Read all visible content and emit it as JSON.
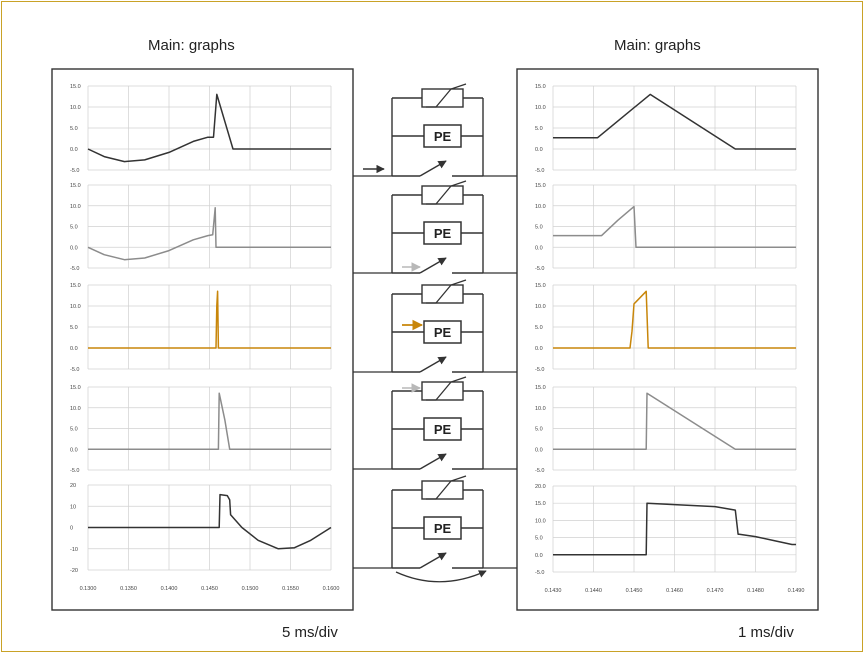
{
  "left_title": "Main: graphs",
  "right_title": "Main: graphs",
  "left_scale": "5 ms/div",
  "right_scale": "1 ms/div",
  "pe_label": "PE",
  "colors": {
    "dark": "#333333",
    "gray": "#8c8c8c",
    "orange": "#c8860a",
    "light": "#b8b8b8",
    "border": "#c9a227"
  },
  "chart_data": [
    {
      "type": "line",
      "panel": "left",
      "x_tick_labels": [],
      "xlim": [
        0.13,
        0.16
      ],
      "ylim": [
        -5,
        15
      ],
      "y_ticks": [
        "15.0",
        "10.0",
        "5.0",
        "0.0",
        "-5.0"
      ],
      "color": "dark",
      "x": [
        0.13,
        0.132,
        0.1345,
        0.137,
        0.14,
        0.143,
        0.1448,
        0.1455,
        0.1459,
        0.1479,
        0.16
      ],
      "y": [
        0,
        -1.8,
        -3,
        -2.6,
        -0.8,
        1.8,
        2.8,
        2.8,
        13,
        0,
        0
      ]
    },
    {
      "type": "line",
      "panel": "left",
      "x_tick_labels": [],
      "xlim": [
        0.13,
        0.16
      ],
      "ylim": [
        -5,
        15
      ],
      "y_ticks": [
        "15.0",
        "10.0",
        "5.0",
        "0.0",
        "-5.0"
      ],
      "color": "gray",
      "x": [
        0.13,
        0.132,
        0.1345,
        0.137,
        0.14,
        0.143,
        0.1448,
        0.1454,
        0.1457,
        0.1458,
        0.16
      ],
      "y": [
        0,
        -1.8,
        -3,
        -2.6,
        -0.8,
        1.8,
        2.8,
        3,
        9.5,
        0,
        0
      ]
    },
    {
      "type": "line",
      "panel": "left",
      "x_tick_labels": [],
      "xlim": [
        0.13,
        0.16
      ],
      "ylim": [
        -5,
        15
      ],
      "y_ticks": [
        "15.0",
        "10.0",
        "5.0",
        "0.0",
        "-5.0"
      ],
      "color": "orange",
      "x": [
        0.13,
        0.1458,
        0.1459,
        0.146,
        0.1461,
        0.16
      ],
      "y": [
        0,
        0,
        10,
        13.5,
        0,
        0
      ]
    },
    {
      "type": "line",
      "panel": "left",
      "x_tick_labels": [],
      "xlim": [
        0.13,
        0.16
      ],
      "ylim": [
        -5,
        15
      ],
      "y_ticks": [
        "15.0",
        "10.0",
        "5.0",
        "0.0",
        "-5.0"
      ],
      "color": "gray",
      "x": [
        0.13,
        0.1461,
        0.1462,
        0.1469,
        0.1475,
        0.16
      ],
      "y": [
        0,
        0,
        13.5,
        7,
        0,
        0
      ]
    },
    {
      "type": "line",
      "panel": "left",
      "xlim": [
        0.13,
        0.16
      ],
      "ylim": [
        -20,
        20
      ],
      "y_ticks": [
        "20",
        "10",
        "0",
        "-10",
        "-20"
      ],
      "color": "dark",
      "x_tick_labels": [
        "0.1300",
        "0.1350",
        "0.1400",
        "0.1450",
        "0.1500",
        "0.1550",
        "0.1600"
      ],
      "x": [
        0.13,
        0.1462,
        0.1463,
        0.1472,
        0.1475,
        0.1476,
        0.149,
        0.151,
        0.1535,
        0.1555,
        0.1575,
        0.16
      ],
      "y": [
        0,
        0,
        15.5,
        15,
        13,
        6,
        0,
        -6,
        -10,
        -9.5,
        -6,
        0
      ]
    },
    {
      "type": "line",
      "panel": "right",
      "x_tick_labels": [],
      "xlim": [
        0.143,
        0.149
      ],
      "ylim": [
        -5,
        15
      ],
      "y_ticks": [
        "15.0",
        "10.0",
        "5.0",
        "0.0",
        "-5.0"
      ],
      "color": "dark",
      "x": [
        0.143,
        0.1441,
        0.1454,
        0.1475,
        0.149
      ],
      "y": [
        2.7,
        2.7,
        13,
        0,
        0
      ]
    },
    {
      "type": "line",
      "panel": "right",
      "x_tick_labels": [],
      "xlim": [
        0.143,
        0.149
      ],
      "ylim": [
        -5,
        15
      ],
      "y_ticks": [
        "15.0",
        "10.0",
        "5.0",
        "0.0",
        "-5.0"
      ],
      "color": "gray",
      "x": [
        0.143,
        0.1442,
        0.1446,
        0.1449,
        0.145,
        0.14505,
        0.149
      ],
      "y": [
        2.8,
        2.8,
        6.5,
        9,
        9.8,
        0,
        0
      ]
    },
    {
      "type": "line",
      "panel": "right",
      "x_tick_labels": [],
      "xlim": [
        0.143,
        0.149
      ],
      "ylim": [
        -5,
        15
      ],
      "y_ticks": [
        "15.0",
        "10.0",
        "5.0",
        "0.0",
        "-5.0"
      ],
      "color": "orange",
      "x": [
        0.143,
        0.1449,
        0.14495,
        0.145,
        0.1453,
        0.14535,
        0.149
      ],
      "y": [
        0,
        0,
        4,
        10.5,
        13.5,
        0,
        0
      ]
    },
    {
      "type": "line",
      "panel": "right",
      "x_tick_labels": [],
      "xlim": [
        0.143,
        0.149
      ],
      "ylim": [
        -5,
        15
      ],
      "y_ticks": [
        "15.0",
        "10.0",
        "5.0",
        "0.0",
        "-5.0"
      ],
      "color": "gray",
      "x": [
        0.143,
        0.1453,
        0.14532,
        0.1475,
        0.149
      ],
      "y": [
        0,
        0,
        13.5,
        0,
        0
      ]
    },
    {
      "type": "line",
      "panel": "right",
      "xlim": [
        0.143,
        0.149
      ],
      "ylim": [
        -5,
        20
      ],
      "y_ticks": [
        "20.0",
        "15.0",
        "10.0",
        "5.0",
        "0.0",
        "-5.0"
      ],
      "color": "dark",
      "x_tick_labels": [
        "0.1430",
        "0.1440",
        "0.1450",
        "0.1460",
        "0.1470",
        "0.1480",
        "0.1490"
      ],
      "x": [
        0.143,
        0.1453,
        0.14532,
        0.146,
        0.147,
        0.1475,
        0.14757,
        0.1476,
        0.148,
        0.1485,
        0.1489,
        0.149
      ],
      "y": [
        0,
        0,
        15,
        14.6,
        14,
        13,
        6,
        6,
        5.3,
        4,
        3,
        3
      ]
    }
  ]
}
